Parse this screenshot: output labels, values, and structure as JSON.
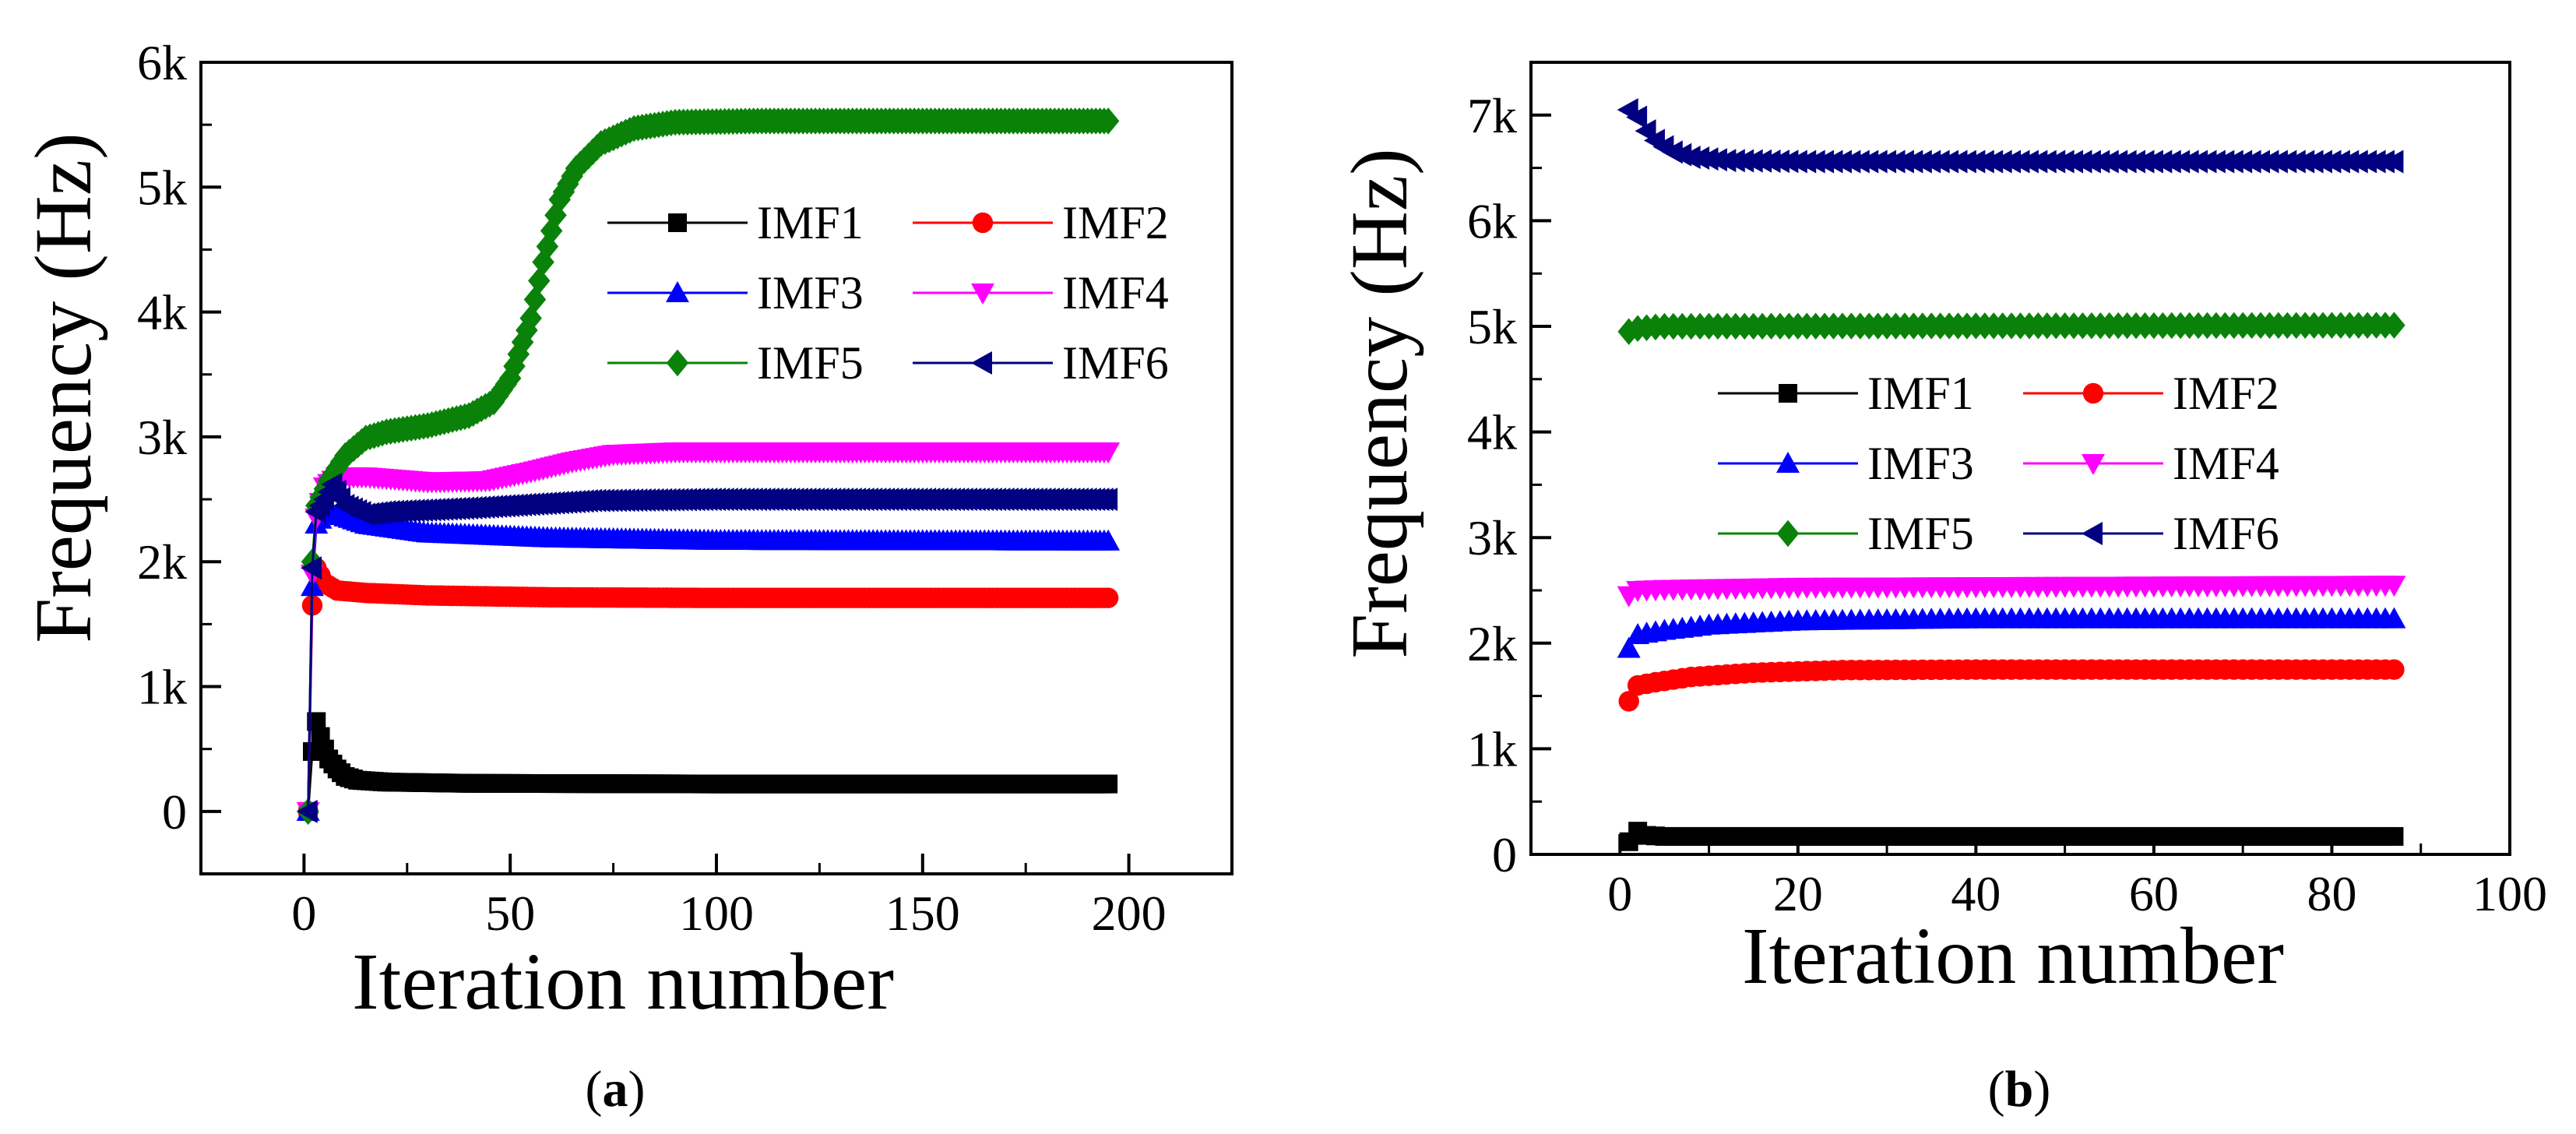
{
  "chart_data": [
    {
      "panel": "a",
      "type": "line",
      "caption": {
        "open": "(",
        "letter": "a",
        "close": ")"
      },
      "xlabel": "Iteration number",
      "ylabel": "Frequency (Hz)",
      "xlim": [
        -25,
        225
      ],
      "ylim": [
        -500,
        6000
      ],
      "x_ticks": [
        0,
        50,
        100,
        150,
        200
      ],
      "x_tick_labels": [
        "0",
        "50",
        "100",
        "150",
        "200"
      ],
      "y_ticks": [
        0,
        1000,
        2000,
        3000,
        4000,
        5000,
        6000
      ],
      "y_tick_labels": [
        "0",
        "1k",
        "2k",
        "3k",
        "4k",
        "5k",
        "6k"
      ],
      "legend": {
        "columns": 2,
        "placement": "upper-right"
      },
      "series": [
        {
          "name": "IMF1",
          "color": "#000000",
          "marker": "square",
          "points": [
            [
              1,
              0
            ],
            [
              2,
              480
            ],
            [
              3,
              720
            ],
            [
              4,
              600
            ],
            [
              5,
              500
            ],
            [
              6,
              420
            ],
            [
              8,
              340
            ],
            [
              10,
              280
            ],
            [
              13,
              250
            ],
            [
              20,
              235
            ],
            [
              40,
              225
            ],
            [
              100,
              220
            ],
            [
              195,
              220
            ]
          ]
        },
        {
          "name": "IMF2",
          "color": "#ff0000",
          "marker": "circle",
          "points": [
            [
              1,
              0
            ],
            [
              2,
              1650
            ],
            [
              3,
              1950
            ],
            [
              5,
              1830
            ],
            [
              8,
              1770
            ],
            [
              15,
              1750
            ],
            [
              30,
              1730
            ],
            [
              60,
              1715
            ],
            [
              100,
              1710
            ],
            [
              195,
              1710
            ]
          ]
        },
        {
          "name": "IMF3",
          "color": "#0000ff",
          "marker": "triangle-up",
          "points": [
            [
              1,
              0
            ],
            [
              2,
              1800
            ],
            [
              3,
              2300
            ],
            [
              5,
              2380
            ],
            [
              8,
              2380
            ],
            [
              15,
              2300
            ],
            [
              30,
              2230
            ],
            [
              60,
              2190
            ],
            [
              100,
              2170
            ],
            [
              195,
              2165
            ]
          ]
        },
        {
          "name": "IMF4",
          "color": "#ff00ff",
          "marker": "triangle-down",
          "points": [
            [
              1,
              0
            ],
            [
              2,
              1900
            ],
            [
              3,
              2350
            ],
            [
              5,
              2600
            ],
            [
              8,
              2680
            ],
            [
              15,
              2680
            ],
            [
              30,
              2640
            ],
            [
              45,
              2650
            ],
            [
              55,
              2720
            ],
            [
              65,
              2800
            ],
            [
              75,
              2860
            ],
            [
              90,
              2880
            ],
            [
              120,
              2880
            ],
            [
              195,
              2880
            ]
          ]
        },
        {
          "name": "IMF5",
          "color": "#0a820a",
          "marker": "diamond",
          "points": [
            [
              1,
              0
            ],
            [
              2,
              2000
            ],
            [
              3,
              2450
            ],
            [
              6,
              2650
            ],
            [
              10,
              2850
            ],
            [
              15,
              2990
            ],
            [
              20,
              3040
            ],
            [
              30,
              3090
            ],
            [
              40,
              3170
            ],
            [
              46,
              3280
            ],
            [
              50,
              3470
            ],
            [
              55,
              3950
            ],
            [
              58,
              4400
            ],
            [
              62,
              4900
            ],
            [
              66,
              5150
            ],
            [
              72,
              5350
            ],
            [
              80,
              5470
            ],
            [
              90,
              5520
            ],
            [
              110,
              5530
            ],
            [
              195,
              5530
            ]
          ]
        },
        {
          "name": "IMF6",
          "color": "#000080",
          "marker": "triangle-left",
          "points": [
            [
              1,
              0
            ],
            [
              2,
              1950
            ],
            [
              3,
              2400
            ],
            [
              5,
              2500
            ],
            [
              7,
              2620
            ],
            [
              10,
              2450
            ],
            [
              15,
              2380
            ],
            [
              20,
              2400
            ],
            [
              40,
              2430
            ],
            [
              70,
              2490
            ],
            [
              100,
              2500
            ],
            [
              195,
              2500
            ]
          ]
        }
      ]
    },
    {
      "panel": "b",
      "type": "line",
      "caption": {
        "open": "(",
        "letter": "b",
        "close": ")"
      },
      "xlabel": "Iteration number",
      "ylabel": "Frequency (Hz)",
      "xlim": [
        -10,
        100
      ],
      "ylim": [
        0,
        7500
      ],
      "x_ticks": [
        0,
        20,
        40,
        60,
        80,
        100
      ],
      "x_tick_labels": [
        "0",
        "20",
        "40",
        "60",
        "80",
        "100"
      ],
      "y_ticks": [
        0,
        1000,
        2000,
        3000,
        4000,
        5000,
        6000,
        7000
      ],
      "y_tick_labels": [
        "0",
        "1k",
        "2k",
        "3k",
        "4k",
        "5k",
        "6k",
        "7k"
      ],
      "legend": {
        "columns": 2,
        "placement": "center"
      },
      "series": [
        {
          "name": "IMF1",
          "color": "#000000",
          "marker": "square",
          "points": [
            [
              1,
              120
            ],
            [
              2,
              220
            ],
            [
              3,
              180
            ],
            [
              5,
              170
            ],
            [
              10,
              170
            ],
            [
              87,
              170
            ]
          ]
        },
        {
          "name": "IMF2",
          "color": "#ff0000",
          "marker": "circle",
          "points": [
            [
              1,
              1450
            ],
            [
              2,
              1600
            ],
            [
              4,
              1630
            ],
            [
              8,
              1680
            ],
            [
              15,
              1720
            ],
            [
              25,
              1745
            ],
            [
              40,
              1750
            ],
            [
              87,
              1750
            ]
          ]
        },
        {
          "name": "IMF3",
          "color": "#0000ff",
          "marker": "triangle-up",
          "points": [
            [
              1,
              1950
            ],
            [
              2,
              2080
            ],
            [
              5,
              2120
            ],
            [
              10,
              2170
            ],
            [
              20,
              2210
            ],
            [
              40,
              2230
            ],
            [
              87,
              2230
            ]
          ]
        },
        {
          "name": "IMF4",
          "color": "#ff00ff",
          "marker": "triangle-down",
          "points": [
            [
              1,
              2450
            ],
            [
              2,
              2500
            ],
            [
              5,
              2510
            ],
            [
              20,
              2530
            ],
            [
              87,
              2550
            ]
          ]
        },
        {
          "name": "IMF5",
          "color": "#0a820a",
          "marker": "diamond",
          "points": [
            [
              1,
              4950
            ],
            [
              2,
              4980
            ],
            [
              5,
              5000
            ],
            [
              87,
              5010
            ]
          ]
        },
        {
          "name": "IMF6",
          "color": "#000080",
          "marker": "triangle-left",
          "points": [
            [
              1,
              7050
            ],
            [
              2,
              6980
            ],
            [
              3,
              6850
            ],
            [
              4,
              6760
            ],
            [
              5,
              6700
            ],
            [
              6,
              6650
            ],
            [
              8,
              6600
            ],
            [
              12,
              6570
            ],
            [
              20,
              6560
            ],
            [
              87,
              6560
            ]
          ]
        }
      ]
    }
  ]
}
